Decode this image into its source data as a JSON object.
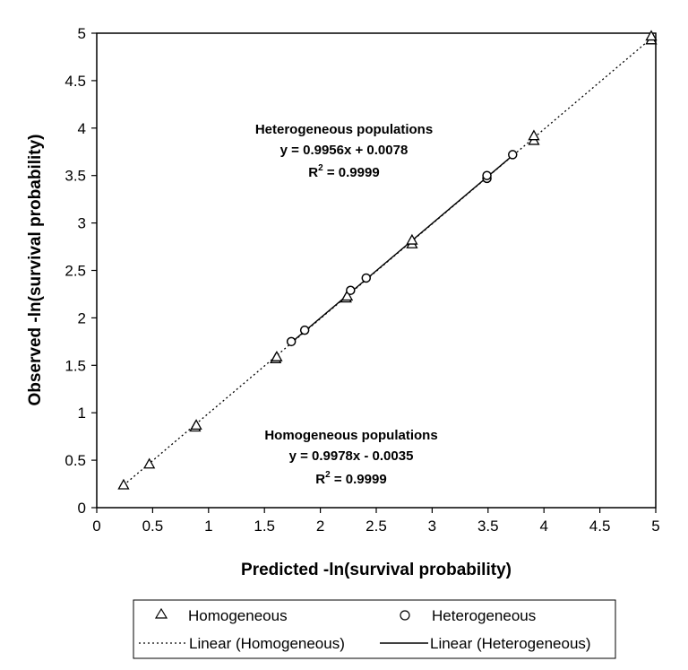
{
  "chart_data": {
    "type": "scatter",
    "xlabel": "Predicted -ln(survival probability)",
    "ylabel": "Observed  -ln(survival probability)",
    "xlim": [
      0,
      5
    ],
    "ylim": [
      0,
      5
    ],
    "x_ticks": [
      "0",
      "0.5",
      "1",
      "1.5",
      "2",
      "2.5",
      "3",
      "3.5",
      "4",
      "4.5",
      "5"
    ],
    "y_ticks": [
      "0",
      "0.5",
      "1",
      "1.5",
      "2",
      "2.5",
      "3",
      "3.5",
      "4",
      "4.5",
      "5"
    ],
    "grid": false,
    "legend_position": "bottom",
    "series": [
      {
        "name": "Homogeneous",
        "marker": "triangle",
        "points": [
          [
            0.24,
            0.24
          ],
          [
            0.47,
            0.46
          ],
          [
            0.88,
            0.85
          ],
          [
            0.89,
            0.87
          ],
          [
            1.6,
            1.57
          ],
          [
            1.61,
            1.59
          ],
          [
            2.23,
            2.21
          ],
          [
            2.24,
            2.23
          ],
          [
            2.82,
            2.78
          ],
          [
            2.82,
            2.82
          ],
          [
            3.91,
            3.87
          ],
          [
            3.91,
            3.92
          ],
          [
            4.96,
            4.93
          ],
          [
            4.96,
            4.97
          ]
        ]
      },
      {
        "name": "Heterogeneous",
        "marker": "circle",
        "points": [
          [
            1.74,
            1.75
          ],
          [
            1.86,
            1.87
          ],
          [
            2.27,
            2.29
          ],
          [
            2.41,
            2.42
          ],
          [
            3.49,
            3.47
          ],
          [
            3.49,
            3.5
          ],
          [
            3.72,
            3.72
          ]
        ]
      }
    ],
    "trendlines": [
      {
        "name": "Linear (Homogeneous)",
        "style": "dotted",
        "slope": 0.9978,
        "intercept": -0.0035,
        "x_range": [
          0.24,
          4.96
        ]
      },
      {
        "name": "Linear (Heterogeneous)",
        "style": "solid",
        "slope": 0.9956,
        "intercept": 0.0078,
        "x_range": [
          1.74,
          3.72
        ]
      }
    ],
    "annotations": [
      {
        "line1": "Heterogeneous populations",
        "line2": "y = 0.9956x + 0.0078",
        "r2_prefix": "R",
        "r2_sup": "2",
        "r2_value": " = 0.9999"
      },
      {
        "line1": "Homogeneous populations",
        "line2": "y = 0.9978x - 0.0035",
        "r2_prefix": "R",
        "r2_sup": "2",
        "r2_value": " = 0.9999"
      }
    ]
  },
  "legend": {
    "homogeneous_label": "Homogeneous",
    "heterogeneous_label": "Heterogeneous",
    "linear_homogeneous_label": "Linear (Homogeneous)",
    "linear_heterogeneous_label": "Linear (Heterogeneous)"
  }
}
